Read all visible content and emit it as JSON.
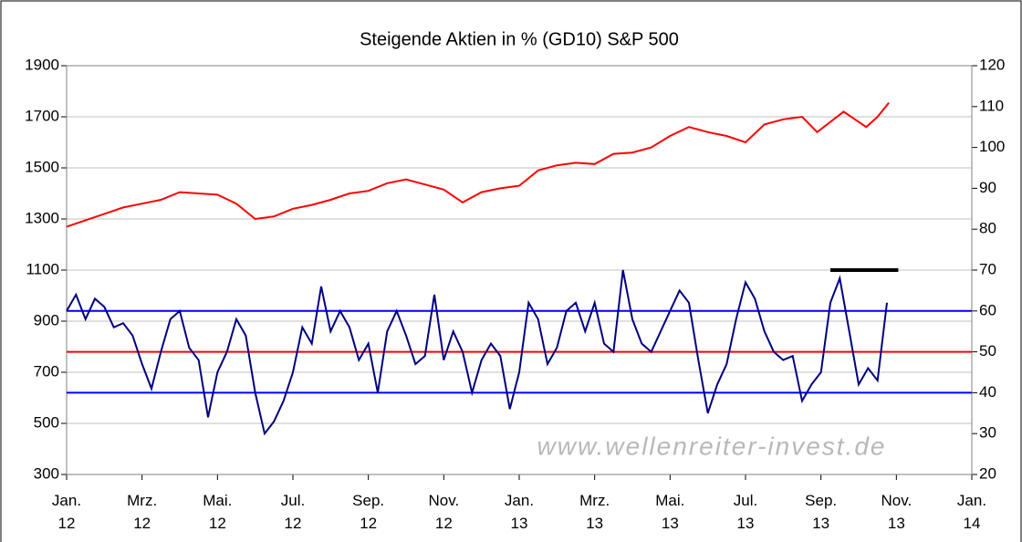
{
  "chart_data": {
    "type": "line",
    "title": "Steigende Aktien in % (GD10) S&P 500",
    "watermark": "www.wellenreiter-invest.de",
    "xlim": [
      0,
      24
    ],
    "xticks": [
      {
        "value": 0,
        "label": "Jan.\n12"
      },
      {
        "value": 2,
        "label": "Mrz.\n12"
      },
      {
        "value": 4,
        "label": "Mai.\n12"
      },
      {
        "value": 6,
        "label": "Jul.\n12"
      },
      {
        "value": 8,
        "label": "Sep.\n12"
      },
      {
        "value": 10,
        "label": "Nov.\n12"
      },
      {
        "value": 12,
        "label": "Jan.\n13"
      },
      {
        "value": 14,
        "label": "Mrz.\n13"
      },
      {
        "value": 16,
        "label": "Mai.\n13"
      },
      {
        "value": 18,
        "label": "Jul.\n13"
      },
      {
        "value": 20,
        "label": "Sep.\n13"
      },
      {
        "value": 22,
        "label": "Nov.\n13"
      },
      {
        "value": 24,
        "label": "Jan.\n14"
      }
    ],
    "ylim": [
      300,
      1900
    ],
    "yticks": [
      300,
      500,
      700,
      900,
      1100,
      1300,
      1500,
      1700,
      1900
    ],
    "y2lim": [
      20,
      120
    ],
    "y2ticks": [
      20,
      30,
      40,
      50,
      60,
      70,
      80,
      90,
      100,
      110,
      120
    ],
    "grid": true,
    "series": [
      {
        "color": "#ff0000",
        "axis": "y",
        "x": [
          0,
          0.5,
          1,
          1.5,
          2,
          2.5,
          3,
          3.5,
          4,
          4.5,
          5,
          5.5,
          6,
          6.5,
          7,
          7.5,
          8,
          8.5,
          9,
          9.5,
          10,
          10.5,
          11,
          11.5,
          12,
          12.5,
          13,
          13.5,
          14,
          14.5,
          15,
          15.5,
          16,
          16.5,
          17,
          17.5,
          18,
          18.5,
          19,
          19.5,
          19.9,
          20.6,
          21.2,
          21.5,
          21.8
        ],
        "values": [
          1270,
          1295,
          1320,
          1345,
          1360,
          1375,
          1405,
          1400,
          1395,
          1360,
          1300,
          1310,
          1340,
          1355,
          1375,
          1400,
          1410,
          1440,
          1455,
          1435,
          1415,
          1365,
          1405,
          1420,
          1430,
          1490,
          1510,
          1520,
          1515,
          1555,
          1560,
          1580,
          1625,
          1660,
          1640,
          1625,
          1600,
          1670,
          1690,
          1700,
          1640,
          1720,
          1660,
          1700,
          1755
        ]
      },
      {
        "color": "#000080",
        "axis": "y2",
        "x": [
          0,
          0.25,
          0.5,
          0.75,
          1,
          1.25,
          1.5,
          1.75,
          2,
          2.25,
          2.5,
          2.75,
          3,
          3.25,
          3.5,
          3.75,
          4,
          4.25,
          4.5,
          4.75,
          5,
          5.25,
          5.5,
          5.75,
          6,
          6.25,
          6.5,
          6.75,
          7,
          7.25,
          7.5,
          7.75,
          8,
          8.25,
          8.5,
          8.75,
          9,
          9.25,
          9.5,
          9.75,
          10,
          10.25,
          10.5,
          10.75,
          11,
          11.25,
          11.5,
          11.75,
          12,
          12.25,
          12.5,
          12.75,
          13,
          13.25,
          13.5,
          13.75,
          14,
          14.25,
          14.5,
          14.75,
          15,
          15.25,
          15.5,
          15.75,
          16,
          16.25,
          16.5,
          16.75,
          17,
          17.25,
          17.5,
          17.75,
          18,
          18.25,
          18.5,
          18.75,
          19,
          19.25,
          19.5,
          19.75,
          20,
          20.25,
          20.5,
          20.75,
          21,
          21.25,
          21.5,
          21.75
        ],
        "values": [
          60,
          64,
          58,
          63,
          61,
          56,
          57,
          54,
          47,
          41,
          50,
          58,
          60,
          51,
          48,
          34,
          45,
          50,
          58,
          54,
          40,
          30,
          33,
          38,
          45,
          56,
          52,
          66,
          55,
          60,
          56,
          48,
          52,
          40,
          55,
          60,
          54,
          47,
          49,
          64,
          48,
          55,
          50,
          40,
          48,
          52,
          49,
          36,
          45,
          62,
          58,
          47,
          51,
          60,
          62,
          55,
          62,
          52,
          50,
          70,
          58,
          52,
          50,
          55,
          60,
          65,
          62,
          48,
          35,
          42,
          47,
          58,
          67,
          63,
          55,
          50,
          48,
          49,
          38,
          42,
          45,
          62,
          68,
          55,
          42,
          46,
          43,
          62
        ]
      }
    ],
    "hlines": [
      {
        "axis": "y2",
        "value": 60,
        "color": "#0000ff"
      },
      {
        "axis": "y2",
        "value": 50,
        "color": "#ff0000"
      },
      {
        "axis": "y2",
        "value": 40,
        "color": "#0000ff"
      }
    ],
    "segments": [
      {
        "axis": "y2",
        "value": 70,
        "x": [
          20.25,
          22.05
        ],
        "color": "#000000"
      }
    ]
  }
}
